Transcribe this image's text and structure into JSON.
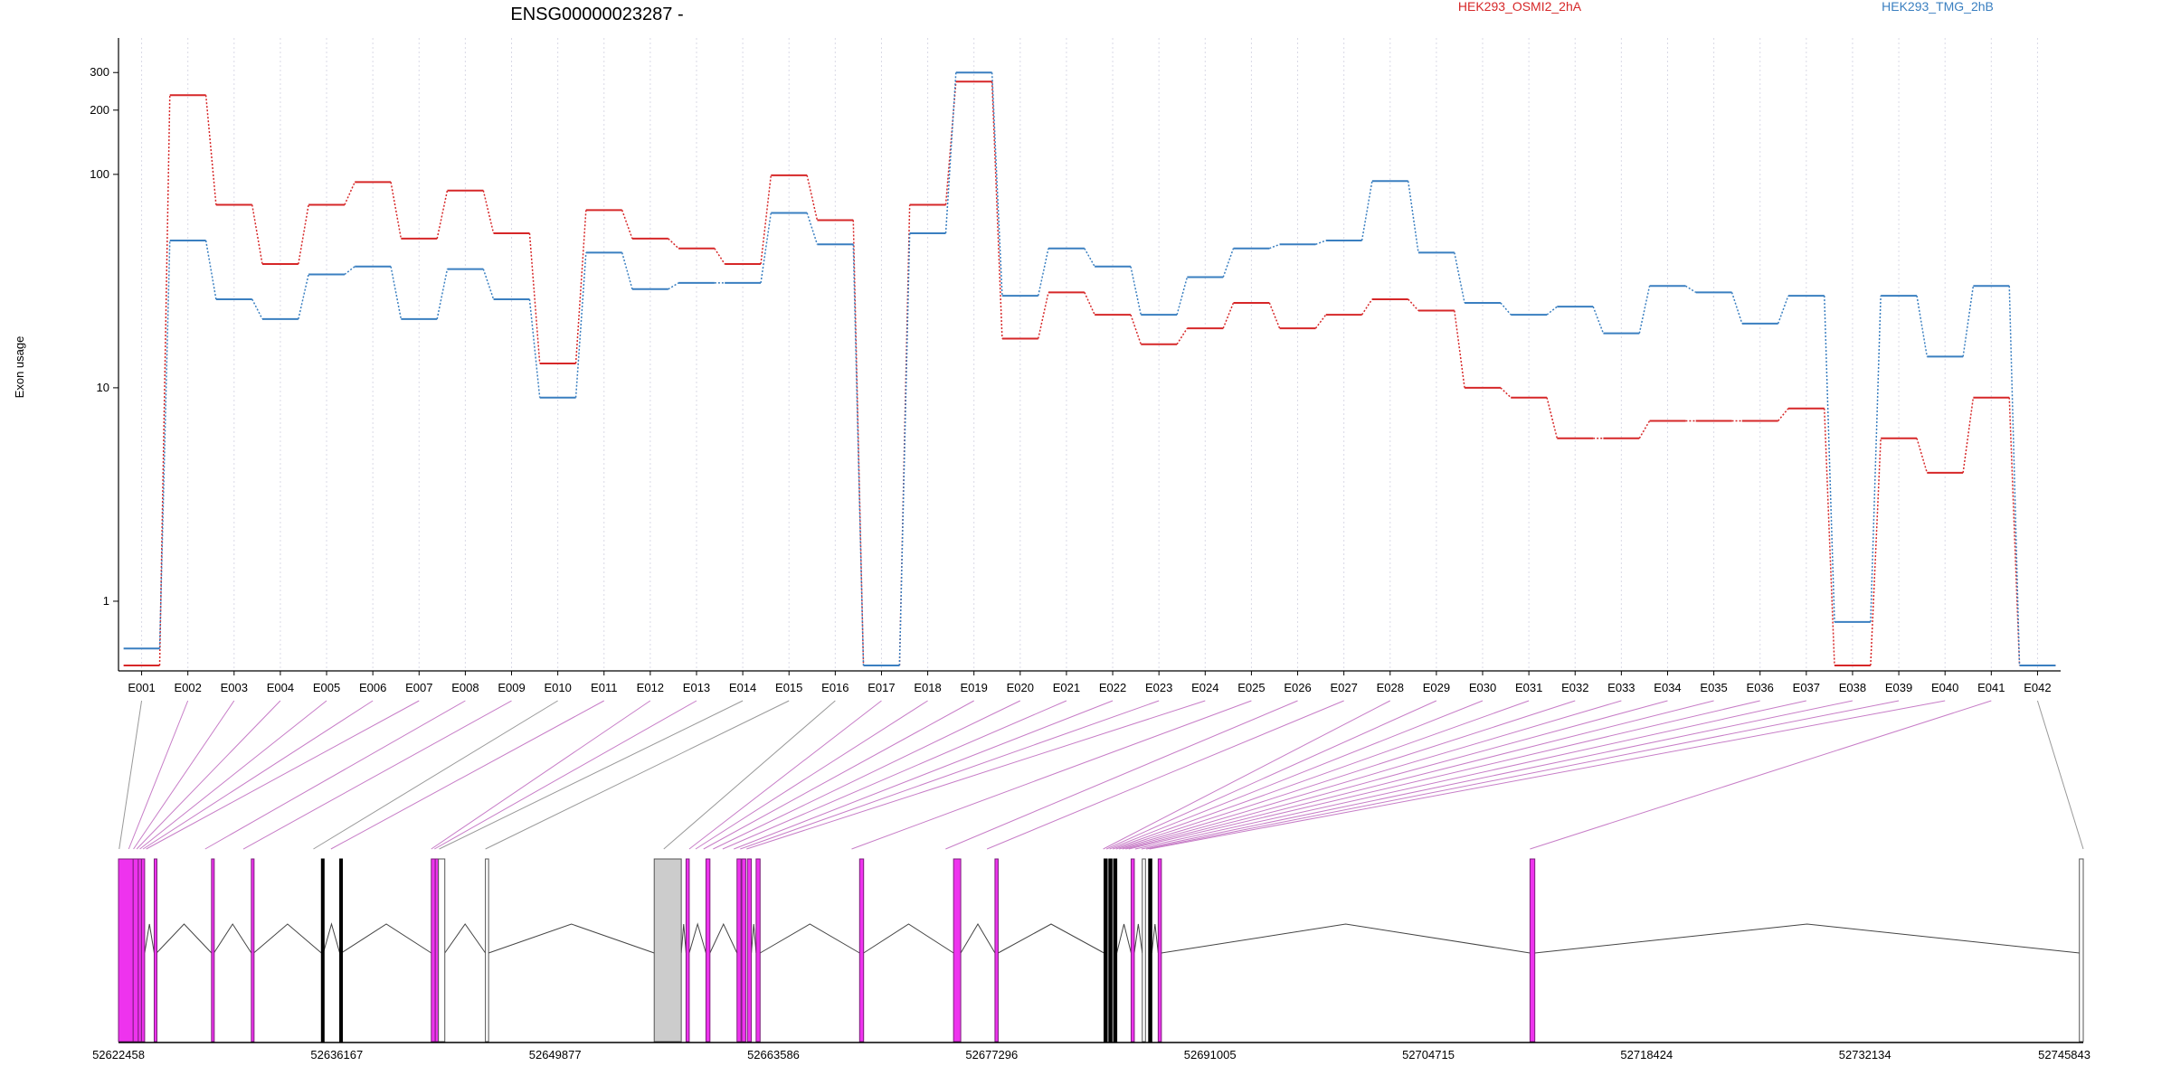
{
  "chart_data": {
    "type": "line",
    "title": "ENSG00000023287 -",
    "ylabel": "Exon usage",
    "yscale": "log",
    "yticks": [
      "1",
      "10",
      "100",
      "200",
      "300"
    ],
    "yrange": [
      0.5,
      380
    ],
    "grid": "vertical dotted",
    "legend_placement": "top-right",
    "categories": [
      "E001",
      "E002",
      "E003",
      "E004",
      "E005",
      "E006",
      "E007",
      "E008",
      "E009",
      "E010",
      "E011",
      "E012",
      "E013",
      "E014",
      "E015",
      "E016",
      "E017",
      "E018",
      "E019",
      "E020",
      "E021",
      "E022",
      "E023",
      "E024",
      "E025",
      "E026",
      "E027",
      "E028",
      "E029",
      "E030",
      "E031",
      "E032",
      "E033",
      "E034",
      "E035",
      "E036",
      "E037",
      "E038",
      "E039",
      "E040",
      "E041",
      "E042"
    ],
    "series": [
      {
        "name": "HEK293_OSMI2_2hA",
        "color": "#d62728",
        "values": [
          0.5,
          235,
          72,
          38,
          72,
          92,
          50,
          84,
          53,
          13,
          68,
          50,
          45,
          38,
          99,
          61,
          0.5,
          72,
          272,
          17,
          28,
          22,
          16,
          19,
          25,
          19,
          22,
          26,
          23,
          10,
          9,
          5.8,
          5.8,
          7,
          7,
          7,
          8,
          0.5,
          5.8,
          4,
          9,
          0.5
        ]
      },
      {
        "name": "HEK293_TMG_2hB",
        "color": "#3a7fc0",
        "values": [
          0.6,
          49,
          26,
          21,
          34,
          37,
          21,
          36,
          26,
          9,
          43,
          29,
          31,
          31,
          66,
          47,
          0.5,
          53,
          300,
          27,
          45,
          37,
          22,
          33,
          45,
          47,
          49,
          93,
          43,
          25,
          22,
          24,
          18,
          30,
          28,
          20,
          27,
          0.8,
          27,
          14,
          30,
          0.5
        ]
      }
    ]
  },
  "gene_model": {
    "coordinate_labels": [
      "52622458",
      "52636167",
      "52649877",
      "52663586",
      "52677296",
      "52691005",
      "52704715",
      "52718424",
      "52732134",
      "52745843"
    ],
    "colors": {
      "significant": "#ee33ee",
      "significant_edge": "#7a1f7a",
      "normal": "#000000",
      "untranslated": "#cccccc",
      "connector_sig": "#c77dc7",
      "connector": "#999999"
    },
    "exons": [
      {
        "start": 52622458,
        "end": 52623380,
        "significant": true
      },
      {
        "start": 52623380,
        "end": 52623700,
        "significant": true
      },
      {
        "start": 52623700,
        "end": 52623900,
        "significant": true
      },
      {
        "start": 52623900,
        "end": 52624100,
        "significant": true
      },
      {
        "start": 52624700,
        "end": 52624850,
        "significant": true
      },
      {
        "start": 52628300,
        "end": 52628450,
        "significant": true
      },
      {
        "start": 52630800,
        "end": 52630950,
        "significant": true
      },
      {
        "start": 52635200,
        "end": 52635320,
        "significant": false
      },
      {
        "start": 52636350,
        "end": 52636450,
        "significant": false
      },
      {
        "start": 52642100,
        "end": 52642350,
        "significant": true
      },
      {
        "start": 52642350,
        "end": 52642550,
        "significant": true
      },
      {
        "start": 52642550,
        "end": 52642950,
        "significant": false,
        "untranslated": true
      },
      {
        "start": 52645500,
        "end": 52645700,
        "significant": false,
        "untranslated": true
      },
      {
        "start": 52656100,
        "end": 52657800,
        "significant": false,
        "untranslated": true
      },
      {
        "start": 52658100,
        "end": 52658300,
        "significant": true
      },
      {
        "start": 52659350,
        "end": 52659600,
        "significant": true
      },
      {
        "start": 52661300,
        "end": 52661550,
        "significant": true
      },
      {
        "start": 52661600,
        "end": 52661850,
        "significant": true
      },
      {
        "start": 52661950,
        "end": 52662200,
        "significant": true
      },
      {
        "start": 52662500,
        "end": 52662750,
        "significant": true
      },
      {
        "start": 52669000,
        "end": 52669250,
        "significant": true
      },
      {
        "start": 52674900,
        "end": 52675350,
        "significant": true
      },
      {
        "start": 52677500,
        "end": 52677700,
        "significant": true
      },
      {
        "start": 52684350,
        "end": 52684550,
        "significant": false
      },
      {
        "start": 52684650,
        "end": 52684850,
        "significant": false
      },
      {
        "start": 52684950,
        "end": 52685150,
        "significant": false
      },
      {
        "start": 52686050,
        "end": 52686250,
        "significant": true
      },
      {
        "start": 52686750,
        "end": 52686950,
        "significant": false,
        "untranslated": true
      },
      {
        "start": 52687150,
        "end": 52687350,
        "significant": false
      },
      {
        "start": 52687750,
        "end": 52687950,
        "significant": true
      },
      {
        "start": 52711100,
        "end": 52711400,
        "significant": true
      },
      {
        "start": 52745600,
        "end": 52745843,
        "significant": false,
        "untranslated": true
      }
    ],
    "exon_links": [
      {
        "exon": "E001",
        "target": 52622500,
        "significant": false
      },
      {
        "exon": "E002",
        "target": 52623100,
        "significant": true
      },
      {
        "exon": "E003",
        "target": 52623400,
        "significant": true
      },
      {
        "exon": "E004",
        "target": 52623600,
        "significant": true
      },
      {
        "exon": "E005",
        "target": 52623800,
        "significant": true
      },
      {
        "exon": "E006",
        "target": 52624000,
        "significant": true
      },
      {
        "exon": "E007",
        "target": 52624200,
        "significant": true
      },
      {
        "exon": "E008",
        "target": 52627900,
        "significant": true
      },
      {
        "exon": "E009",
        "target": 52630300,
        "significant": true
      },
      {
        "exon": "E010",
        "target": 52634700,
        "significant": false
      },
      {
        "exon": "E011",
        "target": 52635800,
        "significant": true
      },
      {
        "exon": "E012",
        "target": 52642100,
        "significant": true
      },
      {
        "exon": "E013",
        "target": 52642300,
        "significant": true
      },
      {
        "exon": "E014",
        "target": 52642600,
        "significant": false
      },
      {
        "exon": "E015",
        "target": 52645500,
        "significant": false
      },
      {
        "exon": "E016",
        "target": 52656700,
        "significant": false
      },
      {
        "exon": "E017",
        "target": 52658300,
        "significant": true
      },
      {
        "exon": "E018",
        "target": 52658700,
        "significant": true
      },
      {
        "exon": "E019",
        "target": 52659200,
        "significant": true
      },
      {
        "exon": "E020",
        "target": 52659800,
        "significant": true
      },
      {
        "exon": "E021",
        "target": 52660400,
        "significant": true
      },
      {
        "exon": "E022",
        "target": 52661100,
        "significant": true
      },
      {
        "exon": "E023",
        "target": 52661500,
        "significant": true
      },
      {
        "exon": "E024",
        "target": 52661900,
        "significant": true
      },
      {
        "exon": "E025",
        "target": 52668500,
        "significant": true
      },
      {
        "exon": "E026",
        "target": 52674400,
        "significant": true
      },
      {
        "exon": "E027",
        "target": 52677000,
        "significant": true
      },
      {
        "exon": "E028",
        "target": 52684300,
        "significant": true
      },
      {
        "exon": "E029",
        "target": 52684500,
        "significant": true
      },
      {
        "exon": "E030",
        "target": 52684700,
        "significant": true
      },
      {
        "exon": "E031",
        "target": 52684900,
        "significant": true
      },
      {
        "exon": "E032",
        "target": 52685100,
        "significant": true
      },
      {
        "exon": "E033",
        "target": 52685300,
        "significant": true
      },
      {
        "exon": "E034",
        "target": 52685500,
        "significant": true
      },
      {
        "exon": "E035",
        "target": 52685700,
        "significant": true
      },
      {
        "exon": "E036",
        "target": 52685900,
        "significant": true
      },
      {
        "exon": "E037",
        "target": 52686300,
        "significant": true
      },
      {
        "exon": "E038",
        "target": 52686700,
        "significant": true
      },
      {
        "exon": "E039",
        "target": 52687000,
        "significant": true
      },
      {
        "exon": "E040",
        "target": 52687200,
        "significant": true
      },
      {
        "exon": "E041",
        "target": 52711100,
        "significant": true
      },
      {
        "exon": "E042",
        "target": 52745843,
        "significant": false
      }
    ]
  }
}
